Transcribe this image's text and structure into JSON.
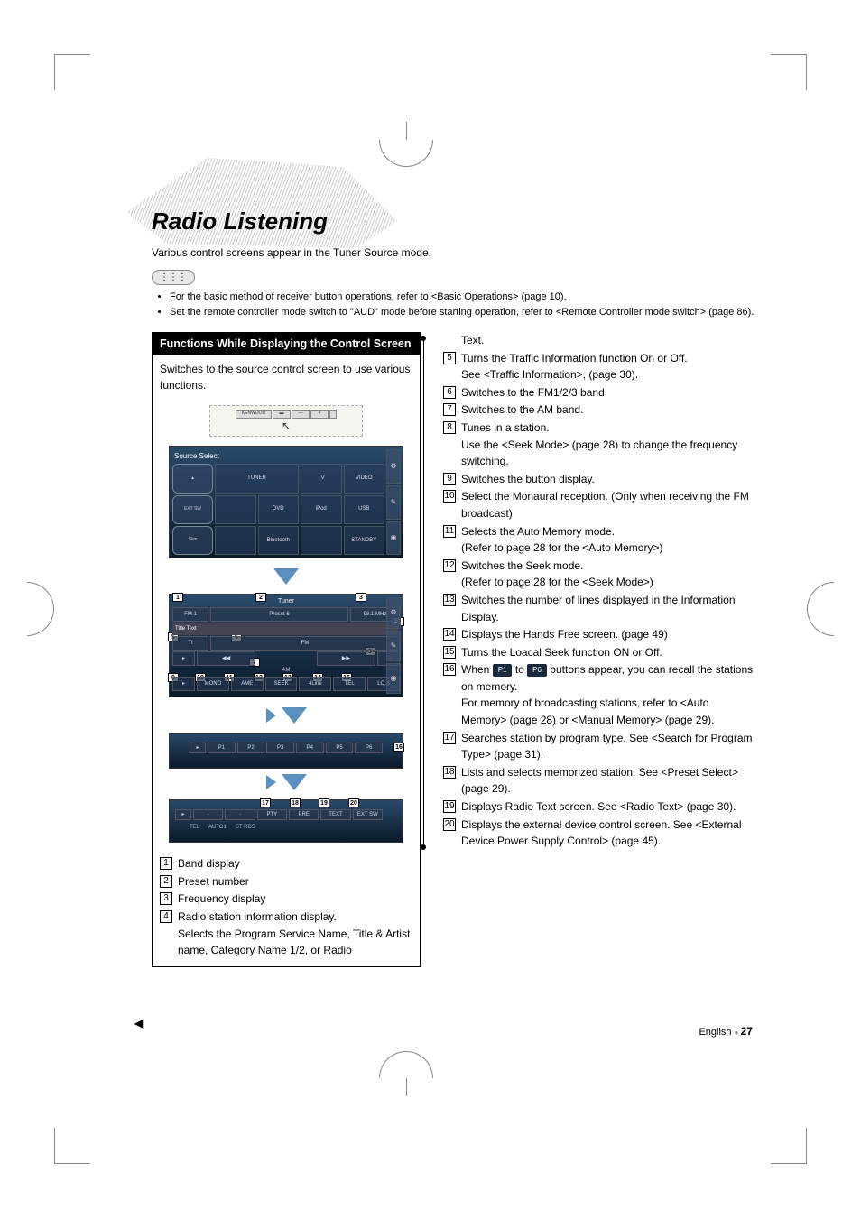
{
  "page_title": "Radio Listening",
  "intro": "Various control screens appear in the Tuner Source mode.",
  "notes_label": "⋮⋮⋮",
  "notes": [
    "For the basic method of receiver button operations, refer to <Basic Operations> (page 10).",
    "Set the remote controller mode switch to \"AUD\" mode before starting operation, refer to <Remote Controller mode switch> (page 86)."
  ],
  "func_header": "Functions While Displaying the Control Screen",
  "func_body": "Switches to the source control screen to use various functions.",
  "kenwood_label": "KENWOOD",
  "source_select": {
    "title": "Source Select",
    "side_buttons": [
      "▲",
      "EXT SW",
      "Skin",
      "TEL",
      "▼"
    ],
    "items": [
      "TUNER",
      "TV",
      "VIDEO",
      "DVD",
      "iPod",
      "USB",
      "Bluetooth",
      "STANDBY"
    ],
    "right_icons": [
      "⚙",
      "✎",
      "◉"
    ]
  },
  "tuner_screen": {
    "band": "Tuner",
    "line1_left": "FM 1",
    "preset": "Preset 6",
    "freq": "98.1 MHz",
    "info_label": "Title Text",
    "buttons": [
      "TI",
      "FM",
      "◀◀",
      "▶▶",
      "AM",
      "MONO",
      "AME",
      "SEEK",
      "4Line",
      "TEL",
      "LO.S"
    ]
  },
  "preset_bar": [
    "P1",
    "P2",
    "P3",
    "P4",
    "P5",
    "P6"
  ],
  "bottom_bar": [
    "·",
    "·",
    "PTY",
    "PRE",
    "TEXT",
    "EXT SW"
  ],
  "bottom_status": [
    "TEL",
    "AUTO1",
    "ST  RDS"
  ],
  "p1_label": "P1",
  "p6_label": "P6",
  "left_list": [
    {
      "n": "1",
      "t": "Band display"
    },
    {
      "n": "2",
      "t": "Preset number"
    },
    {
      "n": "3",
      "t": "Frequency display"
    },
    {
      "n": "4",
      "t": "Radio station information display.\nSelects the Program Service Name, Title & Artist name, Category Name 1/2, or Radio"
    }
  ],
  "right_list": [
    {
      "n": "",
      "t": "Text."
    },
    {
      "n": "5",
      "t": "Turns the Traffic Information function On or Off.\nSee <Traffic Information>, (page 30)."
    },
    {
      "n": "6",
      "t": "Switches to the FM1/2/3 band."
    },
    {
      "n": "7",
      "t": "Switches to the AM band."
    },
    {
      "n": "8",
      "t": "Tunes in a station.\nUse the <Seek Mode> (page 28) to change the frequency switching."
    },
    {
      "n": "9",
      "t": "Switches the button display."
    },
    {
      "n": "10",
      "t": "Select the Monaural reception. (Only when receiving the FM broadcast)"
    },
    {
      "n": "11",
      "t": "Selects the Auto Memory mode.\n(Refer to page 28 for the <Auto Memory>)"
    },
    {
      "n": "12",
      "t": "Switches the Seek mode.\n(Refer to page 28 for the <Seek Mode>)"
    },
    {
      "n": "13",
      "t": "Switches the number of lines displayed in the Information Display."
    },
    {
      "n": "14",
      "t": "Displays the Hands Free screen. (page 49)"
    },
    {
      "n": "15",
      "t": "Turns the Loacal Seek function ON or Off."
    },
    {
      "n": "16",
      "t": "When [P1] to [P6] buttons appear, you can recall the stations on memory.\nFor memory of broadcasting stations, refer to <Auto Memory> (page 28) or <Manual Memory> (page 29).",
      "btn": true
    },
    {
      "n": "17",
      "t": "Searches station by program type. See <Search for Program Type> (page 31)."
    },
    {
      "n": "18",
      "t": "Lists and selects memorized station. See <Preset Select> (page 29)."
    },
    {
      "n": "19",
      "t": "Displays Radio Text screen. See <Radio Text> (page 30)."
    },
    {
      "n": "20",
      "t": "Displays the external device control screen. See <External Device Power Supply Control> (page 45)."
    }
  ],
  "footer_lang": "English",
  "footer_num": "27",
  "colors": {
    "accent_bg": "#000000",
    "arrow_blue": "#5a8fc0",
    "ui_grad_top": "#2a4a6a",
    "ui_grad_bot": "#0a1a2a"
  }
}
